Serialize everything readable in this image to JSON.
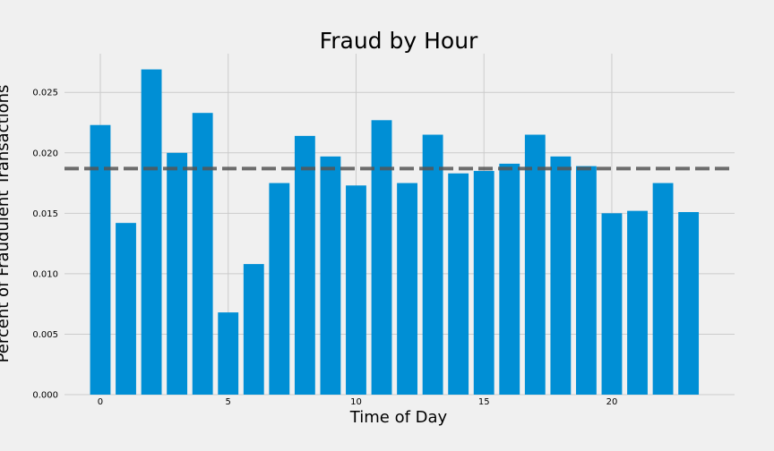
{
  "chart_data": {
    "type": "bar",
    "title": "Fraud by Hour",
    "xlabel": "Time of Day",
    "ylabel": "Percent of Fraudulent Transactions",
    "x": [
      0,
      1,
      2,
      3,
      4,
      5,
      6,
      7,
      8,
      9,
      10,
      11,
      12,
      13,
      14,
      15,
      16,
      17,
      18,
      19,
      20,
      21,
      22,
      23
    ],
    "values": [
      0.0223,
      0.0142,
      0.0269,
      0.02,
      0.0233,
      0.0068,
      0.0108,
      0.0175,
      0.0214,
      0.0197,
      0.0173,
      0.0227,
      0.0175,
      0.0215,
      0.0183,
      0.0185,
      0.0191,
      0.0215,
      0.0197,
      0.0189,
      0.015,
      0.0152,
      0.0175,
      0.0151
    ],
    "mean_line": 0.0187,
    "xticks": [
      0,
      5,
      10,
      15,
      20
    ],
    "xtick_labels": [
      "0",
      "5",
      "10",
      "15",
      "20"
    ],
    "yticks": [
      0,
      0.005,
      0.01,
      0.015,
      0.02,
      0.025
    ],
    "ytick_labels": [
      "0.000",
      "0.005",
      "0.010",
      "0.015",
      "0.020",
      "0.025"
    ],
    "xlim": [
      -1.4,
      24.8
    ],
    "ylim": [
      0,
      0.0282
    ],
    "grid": true,
    "colors": {
      "bar": "#008fd5",
      "mean_line": "#555555",
      "grid": "#cbcbcb",
      "background": "#f0f0f0"
    }
  }
}
